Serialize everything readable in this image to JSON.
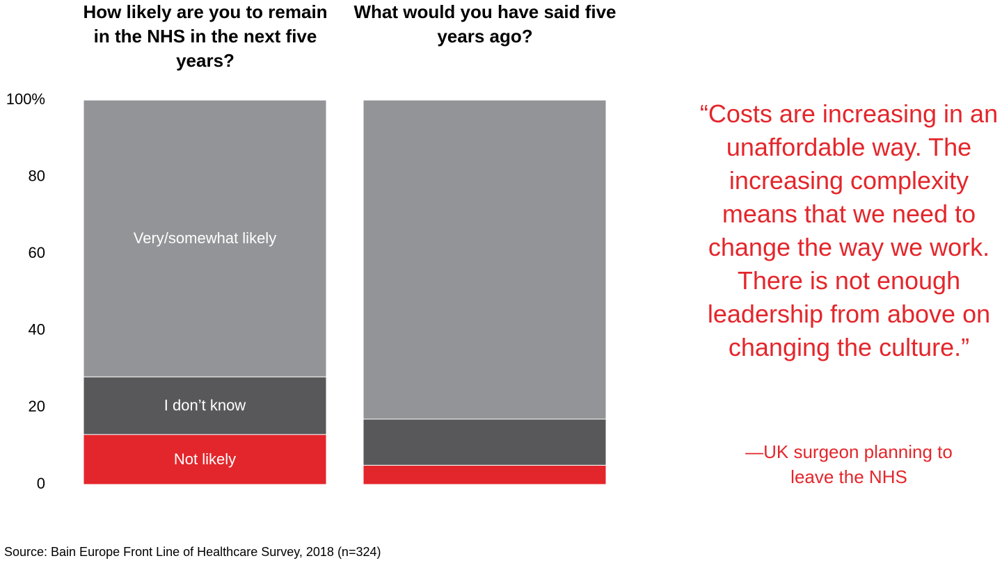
{
  "chart_data": {
    "type": "stacked_bar",
    "categories": [
      "How likely are you to remain in the NHS in the next five years?",
      "What would you have said five years ago?"
    ],
    "series": [
      {
        "name": "Not likely",
        "color": "#e3262b",
        "values": [
          13,
          5
        ]
      },
      {
        "name": "I don’t know",
        "color": "#58585a",
        "values": [
          15,
          12
        ]
      },
      {
        "name": "Very/somewhat likely",
        "color": "#939497",
        "values": [
          72,
          83
        ]
      }
    ],
    "ylim": [
      0,
      100
    ],
    "yticks": [
      0,
      20,
      40,
      60,
      80,
      {
        "value": 100,
        "label": "100%"
      }
    ],
    "annotations": [
      "“Costs are increasing in an unaffordable way. The increasing complexity means that we need to change the way we work. There is not enough leadership from above on changing the culture.”",
      "—UK surgeon planning to leave the NHS"
    ],
    "source": "Source: Bain Europe Front Line of Healthcare Survey, 2018 (n=324)"
  }
}
